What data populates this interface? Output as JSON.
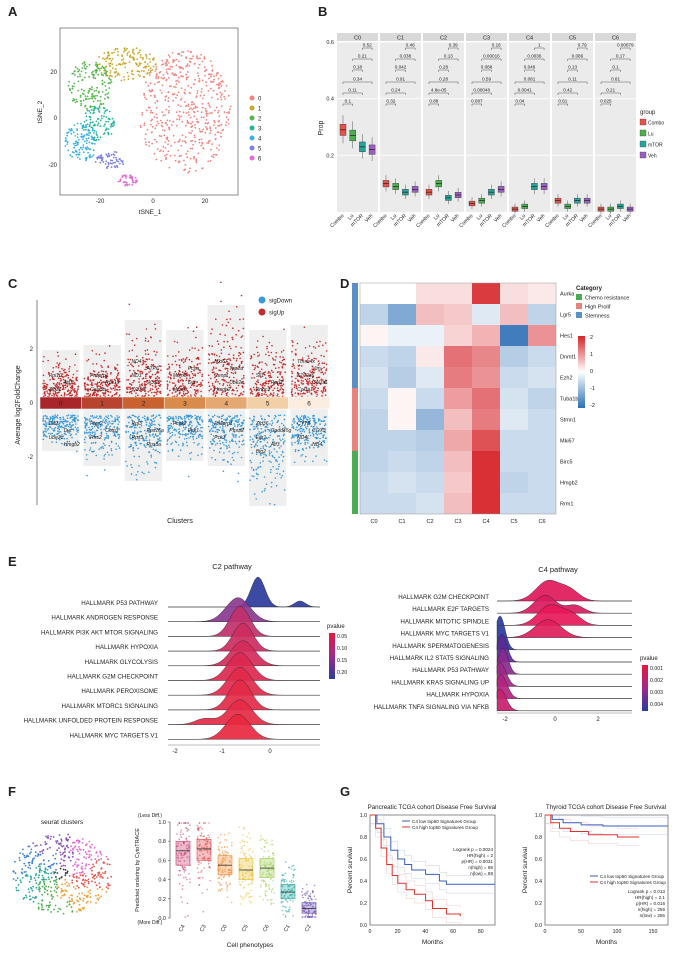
{
  "A": {
    "label": "A",
    "xlabel": "tSNE_1",
    "ylabel": "tSNE_2",
    "xticks": [
      "-20",
      "0",
      "20"
    ],
    "yticks": [
      "20",
      "0",
      "-20"
    ],
    "legend": [
      "0",
      "1",
      "2",
      "3",
      "4",
      "5",
      "6"
    ]
  },
  "B": {
    "label": "B",
    "ylabel": "Prop",
    "legend_title": "group",
    "groups": [
      "Combo",
      "Lu",
      "mTOR",
      "Veh"
    ],
    "ylim": [
      0,
      0.6
    ],
    "yticks": [
      0.2,
      0.4,
      0.6
    ],
    "facets": [
      {
        "name": "C0",
        "pvalues": [
          "0.52",
          "0.21",
          "0.18",
          "0.34",
          "0.11",
          "0.1"
        ],
        "medians": [
          0.29,
          0.27,
          0.23,
          0.22
        ]
      },
      {
        "name": "C1",
        "pvalues": [
          "0.46",
          "0.038",
          "0.042",
          "0.91",
          "0.24",
          "0.32"
        ],
        "medians": [
          0.1,
          0.09,
          0.07,
          0.08
        ]
      },
      {
        "name": "C2",
        "pvalues": [
          "0.39",
          "0.13",
          "0.28",
          "0.28",
          "4.8e-05",
          "0.88"
        ],
        "medians": [
          0.07,
          0.1,
          0.05,
          0.06
        ]
      },
      {
        "name": "C3",
        "pvalues": [
          "0.16",
          "0.00016",
          "0.088",
          "0.59",
          "0.00048",
          "0.087"
        ],
        "medians": [
          0.03,
          0.04,
          0.07,
          0.08
        ]
      },
      {
        "name": "C4",
        "pvalues": [
          "1",
          "0.0036",
          "0.046",
          "0.081",
          "0.0041",
          "0.04"
        ],
        "medians": [
          0.01,
          0.02,
          0.09,
          0.09
        ]
      },
      {
        "name": "C5",
        "pvalues": [
          "0.79",
          "0.086",
          "0.13",
          "0.11",
          "0.42",
          "0.61"
        ],
        "medians": [
          0.04,
          0.02,
          0.04,
          0.04
        ]
      },
      {
        "name": "C6",
        "pvalues": [
          "0.00079",
          "0.17",
          "0.1",
          "0.61",
          "0.21",
          "0.025"
        ],
        "medians": [
          0.01,
          0.01,
          0.02,
          0.01
        ]
      }
    ]
  },
  "C": {
    "label": "C",
    "ylabel": "Average log2FoldChange",
    "xlabel": "Clusters",
    "yticks": [
      "2",
      "0",
      "-2"
    ],
    "legend": [
      "sigDown",
      "sigUp"
    ],
    "clusters": [
      {
        "name": "0",
        "up": [
          "Zfp36",
          "Atf3",
          "Rpl10"
        ],
        "down": [
          "Cd9",
          "Dut",
          "Ube2c",
          "Hmgb2"
        ]
      },
      {
        "name": "1",
        "up": [
          "Cela3a",
          "Rps19",
          "Pnliprp1"
        ],
        "down": [
          "Ptgs2",
          "Cntn3",
          "Rns2"
        ]
      },
      {
        "name": "2",
        "up": [
          "COX2",
          "COX3",
          "ND1",
          "ATP6",
          "ND4"
        ],
        "down": [
          "Rpl3",
          "Rps15a",
          "Rps3",
          "Rps3a"
        ]
      },
      {
        "name": "3",
        "up": [
          "Mcm6",
          "Dut",
          "Mcm5",
          "Pcna"
        ],
        "down": [
          "Pcsk2",
          "Pck1"
        ]
      },
      {
        "name": "4",
        "up": [
          "Hmgb2",
          "Ube2c",
          "Cenpf",
          "Top2a",
          "Mki67"
        ],
        "down": [
          "Pnliprp1",
          "Ptprn2",
          "Pck1"
        ]
      },
      {
        "name": "5",
        "up": [
          "Rnpc3",
          "Rpp2",
          "Sll1"
        ],
        "down": [
          "Zfp36",
          "Gadd45g",
          "Egr1",
          "Atf3",
          "Btg2"
        ]
      },
      {
        "name": "6",
        "up": [
          "Col3a1",
          "Col1a1",
          "S100a6",
          "Vim",
          "Tmsb4x"
        ],
        "down": [
          "CYTB",
          "COX3",
          "ND4L",
          "ND4"
        ]
      }
    ]
  },
  "D": {
    "label": "D",
    "columns": [
      "C0",
      "C1",
      "C2",
      "C3",
      "C4",
      "C5",
      "C6"
    ],
    "category_title": "Category",
    "categories": [
      "Chemo resistance",
      "High Prolif",
      "Stemness"
    ],
    "colorbar_ticks": [
      "2",
      "1",
      "0",
      "-1",
      "-2"
    ],
    "rows": [
      {
        "gene": "Aurka",
        "values": [
          0,
          0,
          0.3,
          0.3,
          1.8,
          0.3,
          0.2
        ]
      },
      {
        "gene": "Lgr5",
        "values": [
          -0.6,
          -1.2,
          0.6,
          0.5,
          -0.3,
          0.6,
          -0.6
        ]
      },
      {
        "gene": "Hes1",
        "values": [
          0.1,
          -0.2,
          -0.2,
          0.4,
          0.7,
          -1.8,
          1.0
        ]
      },
      {
        "gene": "Dnmt1",
        "values": [
          -0.5,
          -0.6,
          0.2,
          1.3,
          1.1,
          -0.7,
          -0.5
        ]
      },
      {
        "gene": "Ezh2",
        "values": [
          -0.4,
          -0.7,
          -0.3,
          1.2,
          1.0,
          -0.5,
          -0.4
        ]
      },
      {
        "gene": "Tuba1b",
        "values": [
          -0.5,
          0.1,
          -0.5,
          0.9,
          1.3,
          -0.4,
          -0.6
        ]
      },
      {
        "gene": "Stmn1",
        "values": [
          -0.6,
          0.1,
          -1.0,
          0.6,
          1.2,
          -0.3,
          -0.5
        ]
      },
      {
        "gene": "Mki67",
        "values": [
          -0.6,
          -0.6,
          -0.7,
          0.8,
          1.6,
          -0.5,
          -0.5
        ]
      },
      {
        "gene": "Birc5",
        "values": [
          -0.6,
          -0.5,
          -0.6,
          0.6,
          1.9,
          -0.5,
          -0.5
        ]
      },
      {
        "gene": "Hmgb2",
        "values": [
          -0.5,
          -0.4,
          -0.5,
          0.5,
          1.9,
          -0.6,
          -0.5
        ]
      },
      {
        "gene": "Rrm1",
        "values": [
          -0.5,
          -0.5,
          -0.4,
          0.6,
          1.9,
          -0.5,
          -0.5
        ]
      }
    ]
  },
  "E": {
    "label": "E",
    "plots": [
      {
        "title": "C2 pathway",
        "legend_title": "pvalue",
        "legend_ticks": [
          "0.05",
          "0.10",
          "0.15",
          "0.20"
        ],
        "xticks": [
          "-2",
          "-1",
          "0"
        ],
        "pathways": [
          {
            "name": "HALLMARK P53 PATHWAY",
            "color": "#111111"
          },
          {
            "name": "HALLMARK ANDROGEN RESPONSE",
            "color": "#111111"
          },
          {
            "name": "HALLMARK PI3K AKT MTOR SIGNALING",
            "color": "#111111"
          },
          {
            "name": "HALLMARK HYPOXIA",
            "color": "#111111"
          },
          {
            "name": "HALLMARK GLYCOLYSIS",
            "color": "#111111"
          },
          {
            "name": "HALLMARK G2M CHECKPOINT",
            "color": "#e3262b"
          },
          {
            "name": "HALLMARK PEROXISOME",
            "color": "#111111"
          },
          {
            "name": "HALLMARK MTORC1 SIGNALING",
            "color": "#111111"
          },
          {
            "name": "HALLMARK UNFOLDED PROTEIN RESPONSE",
            "color": "#111111"
          },
          {
            "name": "HALLMARK MYC TARGETS V1",
            "color": "#e3262b"
          }
        ]
      },
      {
        "title": "C4 pathway",
        "legend_title": "pvalue",
        "legend_ticks": [
          "0.001",
          "0.002",
          "0.003",
          "0.004"
        ],
        "xticks": [
          "-2",
          "0",
          "2"
        ],
        "pathways": [
          {
            "name": "HALLMARK G2M CHECKPOINT",
            "color": "#e3262b"
          },
          {
            "name": "HALLMARK E2F TARGETS",
            "color": "#111111"
          },
          {
            "name": "HALLMARK MITOTIC SPINDLE",
            "color": "#111111"
          },
          {
            "name": "HALLMARK MYC TARGETS V1",
            "color": "#e3262b"
          },
          {
            "name": "HALLMARK SPERMATOGENESIS",
            "color": "#111111"
          },
          {
            "name": "HALLMARK IL2 STAT5 SIGNALING",
            "color": "#111111"
          },
          {
            "name": "HALLMARK P53 PATHWAY",
            "color": "#111111"
          },
          {
            "name": "HALLMARK KRAS SIGNALING UP",
            "color": "#111111"
          },
          {
            "name": "HALLMARK HYPOXIA",
            "color": "#111111"
          },
          {
            "name": "HALLMARK TNFA SIGNALING VIA NFKB",
            "color": "#111111"
          }
        ]
      }
    ]
  },
  "F": {
    "label": "F",
    "tsne_title": "seurat clusters",
    "ylabel": "Predicted ordering by CytoTRACE",
    "top_note": "(Less Diff.)",
    "bottom_note": "(More Diff.)",
    "xlabel": "Cell phenotypes",
    "ylim": [
      0,
      1
    ],
    "yticks": [
      {
        "value": 1,
        "label": "1.0"
      },
      {
        "value": 0.8,
        "label": "0.8"
      },
      {
        "value": 0.6,
        "label": "0.6"
      },
      {
        "value": 0.4,
        "label": "0.4"
      },
      {
        "value": 0.2,
        "label": "0.2"
      },
      {
        "value": 0,
        "label": "0.0"
      }
    ],
    "categories": [
      "C4",
      "C3",
      "C0",
      "C5",
      "C6",
      "C1",
      "C2"
    ],
    "q1": [
      0.55,
      0.6,
      0.45,
      0.4,
      0.42,
      0.2,
      0.05
    ],
    "median": [
      0.7,
      0.72,
      0.55,
      0.5,
      0.52,
      0.27,
      0.1
    ],
    "q3": [
      0.8,
      0.82,
      0.65,
      0.62,
      0.62,
      0.35,
      0.16
    ]
  },
  "G": {
    "label": "G",
    "plots": [
      {
        "title": "Pancreatic TCGA cohort Disease Free Survival",
        "legend": [
          "C4 low top50 Signatures Group",
          "C4 high top50 Signatures Group"
        ],
        "stats": [
          "Logrank p = 0.0024",
          "HR(high) = 2",
          "p(HR) = 0.0031",
          "n(high) = 89",
          "n(low) = 89"
        ],
        "ylabel": "Percent survival",
        "xlabel": "Months",
        "xticks": [
          "0",
          "20",
          "40",
          "60",
          "80"
        ],
        "yticks": [
          "0.0",
          "0.2",
          "0.4",
          "0.6",
          "0.8",
          "1.0"
        ]
      },
      {
        "title": "Thyroid TCGA cohort Disease Free Survival",
        "legend": [
          "C4 low top50 Signatures Group",
          "C4 high top50 Signatures Group"
        ],
        "stats": [
          "Logrank p = 0.013",
          "HR(high) = 2.1",
          "p(HR) = 0.016",
          "n(high) = 255",
          "n(low) = 255"
        ],
        "ylabel": "Percent survival",
        "xlabel": "Months",
        "xticks": [
          "0",
          "50",
          "100",
          "150"
        ],
        "yticks": [
          "0.0",
          "0.2",
          "0.4",
          "0.6",
          "0.8",
          "1.0"
        ]
      }
    ]
  }
}
